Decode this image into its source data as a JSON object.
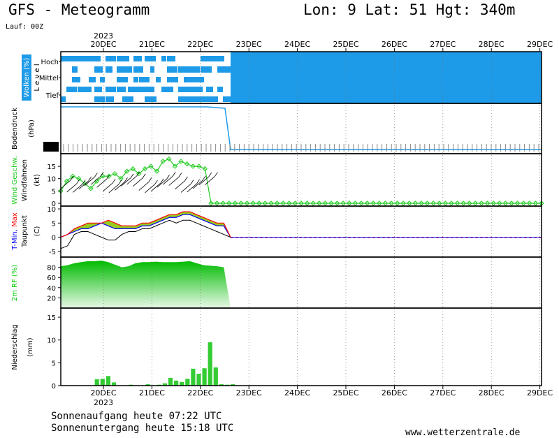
{
  "header": {
    "title": "GFS - Meteogramm",
    "location": "Lon: 9 Lat: 51 Hgt: 340m",
    "run": "Lauf: 00Z"
  },
  "dates": {
    "year": "2023",
    "labels": [
      "20DEC",
      "21DEC",
      "22DEC",
      "23DEC",
      "24DEC",
      "25DEC",
      "26DEC",
      "27DEC",
      "28DEC",
      "29DEC"
    ]
  },
  "footer": {
    "sunrise": "Sonnenaufgang heute 07:22 UTC",
    "sunset": "Sonnenuntergang heute 15:18 UTC",
    "site": "www.wetterzentrale.de"
  },
  "colors": {
    "cloud": "#1e9be8",
    "wind": "#22cc22",
    "tmin": "#0000ff",
    "tmax": "#ff0000",
    "rh": "#00cc00",
    "precip": "#33cc33",
    "pressure": "#1e9be8"
  },
  "chart_data": [
    {
      "type": "heatmap",
      "panel": "clouds",
      "ylabel": "Wolken (%)",
      "level_label": "L e v e l",
      "levels": [
        "Hoch",
        "Mittel",
        "Tief"
      ],
      "note": "full cloud cover from 22DEC 18Z onward"
    },
    {
      "type": "line",
      "panel": "pressure",
      "ylabel": "Bodendruck (hPa)",
      "x": [
        "19DEC",
        "20DEC",
        "21DEC",
        "22DEC",
        "22DEC12Z",
        "23DEC",
        "29DEC"
      ],
      "values": [
        1027,
        1027,
        1027,
        1027,
        1026,
        0,
        0
      ]
    },
    {
      "type": "line",
      "panel": "wind",
      "ylabel": "Wind Geschw. Windfahnen (kt)",
      "yticks": [
        0,
        5,
        10,
        15
      ],
      "ylim": [
        -1,
        19
      ],
      "series": [
        {
          "name": "Wind Geschw.",
          "values": [
            5,
            9,
            11,
            10,
            8,
            6,
            9,
            11,
            11,
            12,
            10,
            13,
            14,
            12,
            14,
            15,
            13,
            17,
            18,
            15,
            17,
            16,
            15,
            15,
            14,
            0,
            0,
            0,
            0,
            0,
            0,
            0,
            0,
            0,
            0,
            0,
            0,
            0,
            0,
            0,
            0,
            0,
            0,
            0,
            0,
            0,
            0,
            0,
            0,
            0,
            0,
            0,
            0,
            0,
            0,
            0,
            0,
            0,
            0,
            0,
            0,
            0,
            0,
            0,
            0,
            0,
            0,
            0,
            0,
            0,
            0,
            0,
            0,
            0,
            0,
            0,
            0,
            0,
            0,
            0,
            0
          ]
        }
      ]
    },
    {
      "type": "area",
      "panel": "temperature",
      "ylabel": "T-Min, Max Taupunkt (C)",
      "yticks": [
        -5,
        0,
        5,
        10
      ],
      "ylim": [
        -7,
        11
      ],
      "series": [
        {
          "name": "T-Min",
          "values": [
            0,
            1,
            2,
            3,
            3,
            4,
            5,
            4,
            3,
            3,
            3,
            3,
            4,
            4,
            5,
            6,
            7,
            7,
            8,
            8,
            7,
            6,
            5,
            4,
            4,
            0
          ]
        },
        {
          "name": "Max",
          "values": [
            0,
            1,
            3,
            4,
            5,
            5,
            5,
            6,
            5,
            4,
            4,
            4,
            5,
            5,
            6,
            7,
            8,
            8,
            9,
            9,
            8,
            7,
            6,
            5,
            5,
            0
          ]
        },
        {
          "name": "Taupunkt",
          "values": [
            -4,
            -3,
            1,
            2,
            2,
            1,
            0,
            -1,
            -1,
            1,
            2,
            2,
            3,
            3,
            4,
            5,
            6,
            5,
            6,
            6,
            5,
            4,
            3,
            2,
            1,
            0
          ]
        }
      ]
    },
    {
      "type": "area",
      "panel": "humidity",
      "ylabel": "2m RF (%)",
      "yticks": [
        20,
        40,
        60,
        80
      ],
      "ylim": [
        0,
        100
      ],
      "values": [
        82,
        84,
        88,
        90,
        92,
        92,
        93,
        90,
        85,
        80,
        82,
        88,
        90,
        90,
        91,
        90,
        90,
        90,
        91,
        92,
        88,
        84,
        83,
        82,
        80,
        0
      ]
    },
    {
      "type": "bar",
      "panel": "precipitation",
      "ylabel": "Niederschlag (mm)",
      "yticks": [
        0,
        5,
        10,
        15
      ],
      "ylim": [
        0,
        17
      ],
      "values": [
        0,
        0,
        0,
        0,
        0,
        0,
        1.4,
        1.5,
        2.1,
        0.7,
        0,
        0,
        0.2,
        0,
        0,
        0.3,
        0,
        0.2,
        0.5,
        1.7,
        1.1,
        0.8,
        1.5,
        3.7,
        2.6,
        3.8,
        9.5,
        4.0,
        0.3,
        0.2,
        0.3,
        0
      ]
    }
  ]
}
